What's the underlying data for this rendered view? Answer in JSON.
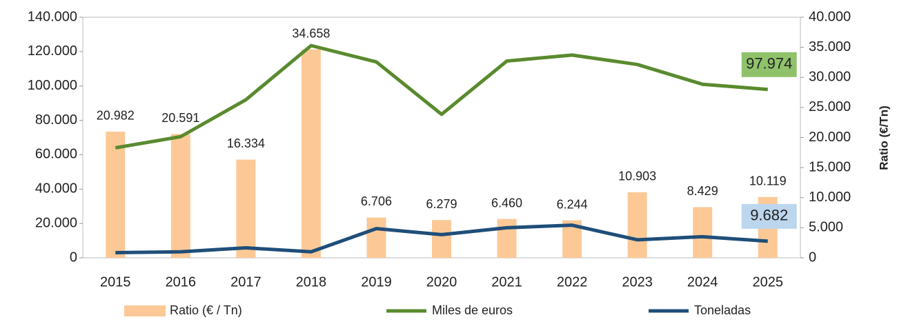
{
  "chart_data": {
    "type": "bar",
    "categories": [
      "2015",
      "2016",
      "2017",
      "2018",
      "2019",
      "2020",
      "2021",
      "2022",
      "2023",
      "2024",
      "2025"
    ],
    "series": [
      {
        "name": "Ratio (€ / Tn)",
        "type": "bar",
        "axis": "y2",
        "color": "#fcc996",
        "values": [
          20982,
          20591,
          16334,
          34658,
          6706,
          6279,
          6460,
          6244,
          10903,
          8429,
          10119
        ],
        "value_labels": [
          "20.982",
          "20.591",
          "16.334",
          "34.658",
          "6.706",
          "6.279",
          "6.460",
          "6.244",
          "10.903",
          "8.429",
          "10.119"
        ]
      },
      {
        "name": "Miles de euros",
        "type": "line",
        "axis": "y",
        "color": "#5a8a2e",
        "values": [
          64000,
          70500,
          92000,
          123500,
          114000,
          83500,
          114500,
          118000,
          112500,
          101000,
          97974
        ],
        "value_labels": [
          null,
          null,
          null,
          null,
          null,
          null,
          null,
          null,
          null,
          null,
          "97.974"
        ]
      },
      {
        "name": "Toneladas",
        "type": "line",
        "axis": "y",
        "color": "#1f4e79",
        "values": [
          3000,
          3500,
          5800,
          3500,
          17000,
          13500,
          17500,
          19000,
          10500,
          12300,
          9682
        ],
        "value_labels": [
          null,
          null,
          null,
          null,
          null,
          null,
          null,
          null,
          null,
          null,
          "9.682"
        ]
      }
    ],
    "y2label": "Ratio (€/Tn)",
    "ylim": [
      0,
      140000
    ],
    "yticks": [
      0,
      {
        "value": 20000,
        "label": "20.000"
      },
      {
        "value": 40000,
        "label": "40.000"
      },
      {
        "value": 60000,
        "label": "60.000"
      },
      {
        "value": 80000,
        "label": "80.000"
      },
      {
        "value": 100000,
        "label": "100.000"
      },
      {
        "value": 120000,
        "label": "120.000"
      },
      {
        "value": 140000,
        "label": "140.000"
      }
    ],
    "y2lim": [
      0,
      40000
    ],
    "y2ticks": [
      0,
      {
        "value": 5000,
        "label": "5.000"
      },
      {
        "value": 10000,
        "label": "10.000"
      },
      {
        "value": 15000,
        "label": "15.000"
      },
      {
        "value": 20000,
        "label": "20.000"
      },
      {
        "value": 25000,
        "label": "25.000"
      },
      {
        "value": 30000,
        "label": "30.000"
      },
      {
        "value": 35000,
        "label": "35.000"
      },
      {
        "value": 40000,
        "label": "40.000"
      }
    ],
    "grid": false,
    "legend": "bottom"
  }
}
